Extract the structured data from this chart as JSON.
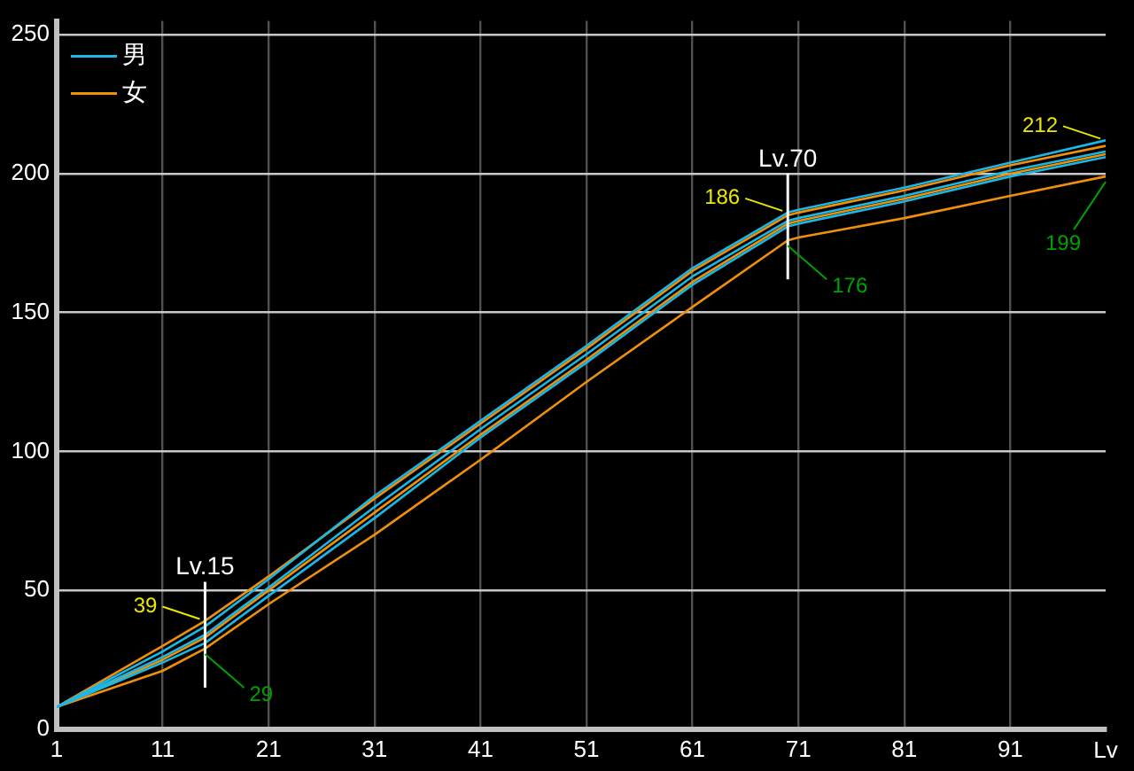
{
  "chart_data": {
    "type": "line",
    "xlabel": "Lv",
    "x": [
      1,
      11,
      15,
      21,
      31,
      41,
      51,
      61,
      70,
      71,
      81,
      91,
      100
    ],
    "series": [
      {
        "name": "男",
        "color": "#1ab8e8",
        "values": [
          8,
          28,
          37,
          54,
          84,
          111,
          138,
          166,
          186,
          187,
          195,
          204,
          212
        ]
      },
      {
        "color": "#1ab8e8",
        "values": [
          8,
          26,
          34,
          51,
          80,
          108,
          135,
          163,
          183,
          184,
          192,
          201,
          208
        ]
      },
      {
        "color": "#1ab8e8",
        "values": [
          8,
          24,
          31,
          48,
          76,
          105,
          132,
          160,
          181,
          182,
          190,
          199,
          206
        ]
      },
      {
        "name": "女",
        "color": "#f0900a",
        "values": [
          8,
          30,
          39,
          55,
          83,
          110,
          137,
          165,
          185,
          186,
          194,
          203,
          210
        ]
      },
      {
        "color": "#f0900a",
        "values": [
          8,
          25,
          33,
          50,
          78,
          106,
          133,
          161,
          182,
          183,
          191,
          200,
          207
        ]
      },
      {
        "color": "#f0900a",
        "values": [
          8,
          21,
          29,
          45,
          70,
          97,
          125,
          152,
          176,
          177,
          184,
          192,
          199
        ]
      }
    ],
    "xlim": [
      1,
      100
    ],
    "xticks": [
      1,
      11,
      21,
      31,
      41,
      51,
      61,
      71,
      81,
      91
    ],
    "ylim": [
      0,
      255
    ],
    "yticks": [
      0,
      50,
      100,
      150,
      200,
      250
    ],
    "grid": true,
    "legend": "top left",
    "marker": "none",
    "line_style": "solid",
    "ref_lines": [
      {
        "axis": "x",
        "value": 15,
        "label": "Lv.15"
      },
      {
        "axis": "x",
        "value": 70,
        "label": "Lv.70"
      }
    ],
    "annotations": [
      {
        "text": "39",
        "x": 15,
        "y": 39
      },
      {
        "text": "29",
        "x": 15,
        "y": 29
      },
      {
        "text": "186",
        "x": 70,
        "y": 186
      },
      {
        "text": "176",
        "x": 70,
        "y": 176
      },
      {
        "text": "212",
        "x": 100,
        "y": 212
      },
      {
        "text": "199",
        "x": 100,
        "y": 199
      }
    ]
  }
}
